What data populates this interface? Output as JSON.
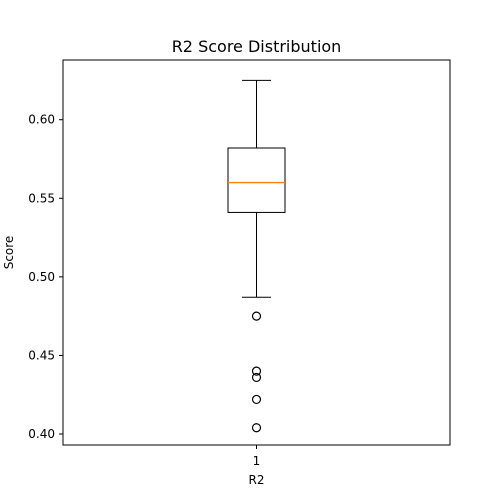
{
  "chart_data": {
    "type": "box",
    "title": "R2 Score Distribution",
    "xlabel": "R2",
    "ylabel": "Score",
    "categories": [
      "1"
    ],
    "ylim": [
      0.393,
      0.638
    ],
    "yticks": [
      0.4,
      0.45,
      0.5,
      0.55,
      0.6
    ],
    "ytick_labels": [
      "0.40",
      "0.45",
      "0.50",
      "0.55",
      "0.60"
    ],
    "grid": false,
    "box": {
      "whisker_low": 0.487,
      "q1": 0.541,
      "median": 0.56,
      "q3": 0.582,
      "whisker_high": 0.625,
      "outliers": [
        0.475,
        0.44,
        0.436,
        0.422,
        0.404
      ]
    },
    "colors": {
      "box": "#000000",
      "median": "#ff7f0e",
      "outlier_edge": "#000000"
    }
  }
}
